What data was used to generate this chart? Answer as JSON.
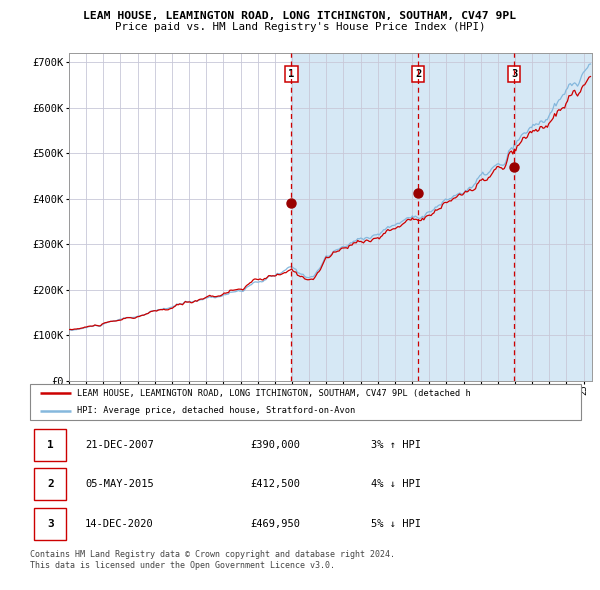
{
  "title1": "LEAM HOUSE, LEAMINGTON ROAD, LONG ITCHINGTON, SOUTHAM, CV47 9PL",
  "title2": "Price paid vs. HM Land Registry's House Price Index (HPI)",
  "xlim_start": 1995.0,
  "xlim_end": 2025.5,
  "ylim": [
    0,
    720000
  ],
  "yticks": [
    0,
    100000,
    200000,
    300000,
    400000,
    500000,
    600000,
    700000
  ],
  "ytick_labels": [
    "£0",
    "£100K",
    "£200K",
    "£300K",
    "£400K",
    "£500K",
    "£600K",
    "£700K"
  ],
  "sale_dates": [
    2007.97,
    2015.35,
    2020.95
  ],
  "sale_prices": [
    390000,
    412500,
    469950
  ],
  "sale_labels": [
    "1",
    "2",
    "3"
  ],
  "hpi_color": "#85b8dd",
  "price_color": "#cc0000",
  "dot_color": "#990000",
  "bg_fill_color": "#d6e8f5",
  "grid_color": "#c8c8d8",
  "dashed_line_color": "#cc0000",
  "legend_label_red": "LEAM HOUSE, LEAMINGTON ROAD, LONG ITCHINGTON, SOUTHAM, CV47 9PL (detached h",
  "legend_label_blue": "HPI: Average price, detached house, Stratford-on-Avon",
  "table_rows": [
    {
      "num": "1",
      "date": "21-DEC-2007",
      "price": "£390,000",
      "hpi": "3% ↑ HPI"
    },
    {
      "num": "2",
      "date": "05-MAY-2015",
      "price": "£412,500",
      "hpi": "4% ↓ HPI"
    },
    {
      "num": "3",
      "date": "14-DEC-2020",
      "price": "£469,950",
      "hpi": "5% ↓ HPI"
    }
  ],
  "footnote1": "Contains HM Land Registry data © Crown copyright and database right 2024.",
  "footnote2": "This data is licensed under the Open Government Licence v3.0."
}
